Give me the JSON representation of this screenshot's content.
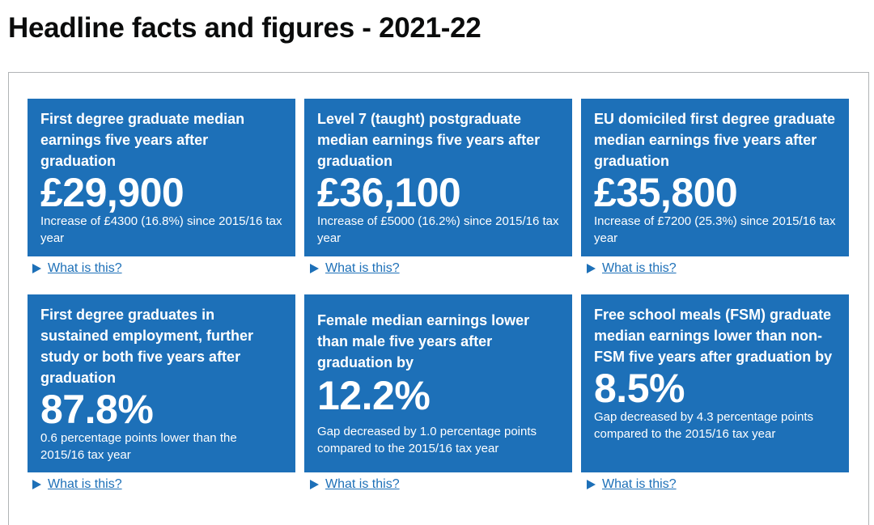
{
  "page": {
    "title": "Headline facts and figures - 2021-22"
  },
  "tiles": [
    {
      "heading": "First degree graduate median earnings five years after graduation",
      "value": "£29,900",
      "caption": "Increase of £4300 (16.8%) since 2015/16 tax year",
      "details_label": "What is this?"
    },
    {
      "heading": "Level 7 (taught) postgraduate median earnings five years after graduation",
      "value": "£36,100",
      "caption": "Increase of £5000 (16.2%) since 2015/16 tax year",
      "details_label": "What is this?"
    },
    {
      "heading": "EU domiciled first degree graduate median earnings five years after graduation",
      "value": "£35,800",
      "caption": "Increase of £7200 (25.3%) since 2015/16 tax year",
      "details_label": "What is this?"
    },
    {
      "heading": "First degree graduates in sustained employment, further study or both five years after graduation",
      "value": "87.8%",
      "caption": "0.6 percentage points lower than the 2015/16 tax year",
      "details_label": "What is this?"
    },
    {
      "heading": "Female median earnings lower than male five years after graduation by",
      "value": "12.2%",
      "caption": "Gap decreased by 1.0 percentage points compared to the 2015/16 tax year",
      "details_label": "What is this?"
    },
    {
      "heading": "Free school meals (FSM) graduate median earnings lower than non-FSM five years after graduation by",
      "value": "8.5%",
      "caption": "Gap decreased by 4.3 percentage points compared to the 2015/16 tax year",
      "details_label": "What is this?"
    }
  ],
  "colors": {
    "tile_background": "#1d70b8",
    "link": "#1d70b8",
    "text": "#0b0c0c",
    "panel_border": "#b1b4b6"
  }
}
